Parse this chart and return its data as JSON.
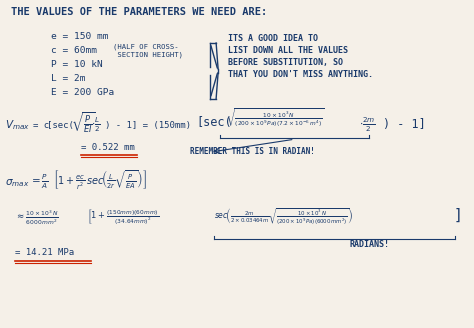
{
  "background_color": "#f5f0e8",
  "text_color": "#1a3a6b",
  "red_color": "#cc2200",
  "annotation_color": "#1a3a6b",
  "title": "The Values of the Parameters We Need Are:",
  "params": [
    "e = 150 mm",
    "c = 60mm  (half of cross-",
    "               section height)",
    "P = 10 kN",
    "L = 2m",
    "E = 200 GPa"
  ],
  "note": "Its a good idea to\nlist down all the values\nbefore substitution, so\nthat you don't miss anything.",
  "figsize": [
    4.74,
    3.28
  ],
  "dpi": 100
}
